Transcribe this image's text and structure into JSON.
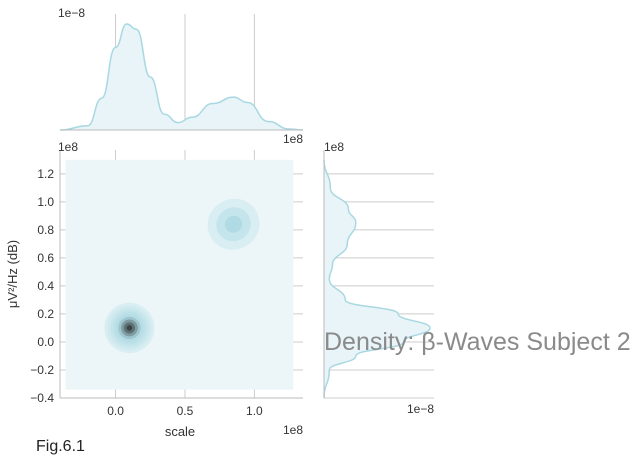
{
  "figure_label": "Fig.6.1",
  "chart_data": {
    "type": "kde-joint",
    "title": "Density: β-Waves Subject 2",
    "xlabel": "scale",
    "ylabel": "μV²/Hz (dB)",
    "x_offset_text": "1e8",
    "y_offset_text": "1e8",
    "top_marginal_offset_text": "1e−8",
    "right_marginal_offset_text": "1e−8",
    "xlim": [
      -0.4,
      1.35
    ],
    "ylim": [
      -0.4,
      1.37
    ],
    "x_ticks": [
      0.0,
      0.5,
      1.0
    ],
    "x_tick_labels": [
      "0.0",
      "0.5",
      "1.0"
    ],
    "y_ticks": [
      -0.4,
      -0.2,
      0.0,
      0.2,
      0.4,
      0.6,
      0.8,
      1.0,
      1.2
    ],
    "y_tick_labels": [
      "−0.4",
      "−0.2",
      "0.0",
      "0.2",
      "0.4",
      "0.6",
      "0.8",
      "1.0",
      "1.2"
    ],
    "grid": true,
    "colors": {
      "fill_base": "#ecf6f9",
      "marginal_line": "#a8d8e2",
      "marginal_fill": "#e8f4f7",
      "low_level": "#d9eef3",
      "mid_level": "#b0dbe4",
      "high_level": "#1a1a1a"
    },
    "clusters": [
      {
        "center": [
          0.1,
          0.1
        ],
        "spread": [
          0.18,
          0.18
        ],
        "levels": 9
      },
      {
        "center": [
          0.85,
          0.84
        ],
        "spread": [
          0.14,
          0.18
        ],
        "levels": 3
      }
    ],
    "x_marginal_density": [
      {
        "x": -0.4,
        "d": 0.0
      },
      {
        "x": -0.2,
        "d": 0.04
      },
      {
        "x": -0.1,
        "d": 0.3
      },
      {
        "x": 0.0,
        "d": 0.78
      },
      {
        "x": 0.08,
        "d": 1.0
      },
      {
        "x": 0.15,
        "d": 0.95
      },
      {
        "x": 0.25,
        "d": 0.5
      },
      {
        "x": 0.35,
        "d": 0.15
      },
      {
        "x": 0.45,
        "d": 0.07
      },
      {
        "x": 0.55,
        "d": 0.12
      },
      {
        "x": 0.7,
        "d": 0.25
      },
      {
        "x": 0.85,
        "d": 0.31
      },
      {
        "x": 0.95,
        "d": 0.26
      },
      {
        "x": 1.1,
        "d": 0.08
      },
      {
        "x": 1.25,
        "d": 0.01
      },
      {
        "x": 1.35,
        "d": 0.0
      }
    ],
    "y_marginal_density": [
      {
        "y": -0.4,
        "d": 0.0
      },
      {
        "y": -0.2,
        "d": 0.05
      },
      {
        "y": -0.1,
        "d": 0.3
      },
      {
        "y": 0.0,
        "d": 0.75
      },
      {
        "y": 0.1,
        "d": 1.0
      },
      {
        "y": 0.2,
        "d": 0.7
      },
      {
        "y": 0.3,
        "d": 0.2
      },
      {
        "y": 0.45,
        "d": 0.05
      },
      {
        "y": 0.55,
        "d": 0.08
      },
      {
        "y": 0.7,
        "d": 0.22
      },
      {
        "y": 0.85,
        "d": 0.3
      },
      {
        "y": 0.95,
        "d": 0.23
      },
      {
        "y": 1.1,
        "d": 0.06
      },
      {
        "y": 1.3,
        "d": 0.0
      }
    ]
  }
}
